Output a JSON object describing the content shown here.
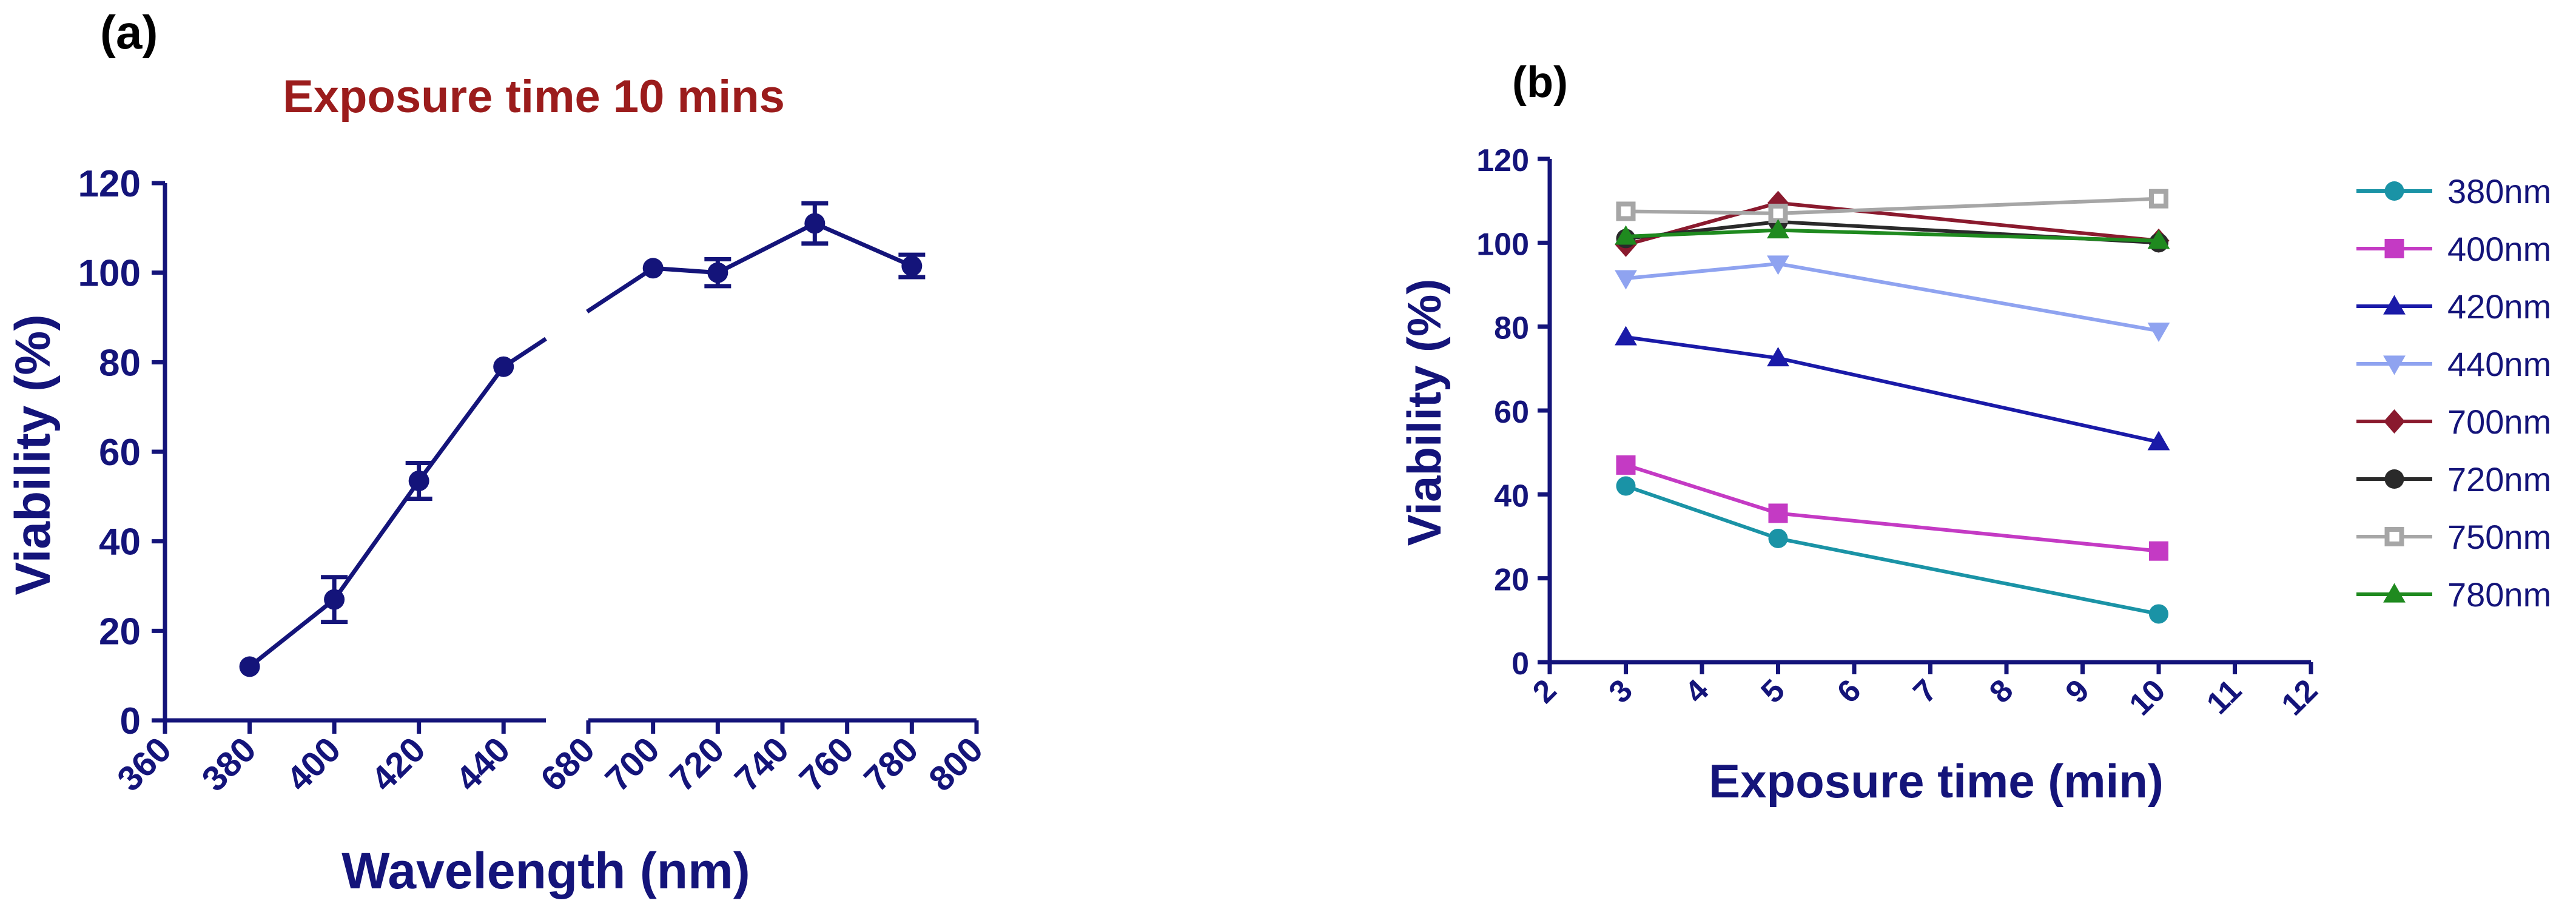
{
  "colors": {
    "axis": "#14147a",
    "title_red": "#9b1c1c",
    "label_black": "#000000"
  },
  "chart_data": [
    {
      "panel": "(a)",
      "type": "line",
      "title": "Exposure time 10 mins",
      "xlabel": "Wavelength (nm)",
      "ylabel": "Viability (%)",
      "ylim": [
        0,
        120
      ],
      "yticks": [
        "0",
        "20",
        "40",
        "60",
        "80",
        "100",
        "120"
      ],
      "segments": [
        {
          "xlim": [
            360,
            450
          ],
          "xticks": [
            "360",
            "380",
            "400",
            "420",
            "440"
          ]
        },
        {
          "xlim": [
            680,
            800
          ],
          "xticks": [
            "680",
            "700",
            "720",
            "740",
            "760",
            "780",
            "800"
          ]
        }
      ],
      "grid": false,
      "series": [
        {
          "name": "Viability",
          "color": "#14147a",
          "marker": "circle",
          "points": [
            {
              "x": 380,
              "y": 12,
              "err": 0
            },
            {
              "x": 400,
              "y": 27,
              "err": 5
            },
            {
              "x": 420,
              "y": 53.5,
              "err": 4
            },
            {
              "x": 440,
              "y": 79,
              "err": 0
            },
            {
              "x": 700,
              "y": 101,
              "err": 0
            },
            {
              "x": 720,
              "y": 100,
              "err": 3
            },
            {
              "x": 750,
              "y": 111,
              "err": 4.5
            },
            {
              "x": 780,
              "y": 101.5,
              "err": 2.5
            }
          ]
        }
      ]
    },
    {
      "panel": "(b)",
      "type": "line",
      "title": "",
      "xlabel": "Exposure time (min)",
      "ylabel": "Viability (%)",
      "xlim": [
        2,
        12
      ],
      "ylim": [
        0,
        120
      ],
      "xticks": [
        "2",
        "3",
        "4",
        "5",
        "6",
        "7",
        "8",
        "9",
        "10",
        "11",
        "12"
      ],
      "yticks": [
        "0",
        "20",
        "40",
        "60",
        "80",
        "100",
        "120"
      ],
      "x": [
        3,
        5,
        10
      ],
      "grid": false,
      "legend_position": "right",
      "series": [
        {
          "name": "380nm",
          "color": "#1a93a6",
          "marker": "circle",
          "values": [
            42,
            29.5,
            11.5
          ]
        },
        {
          "name": "400nm",
          "color": "#c43ac4",
          "marker": "square",
          "values": [
            47,
            35.5,
            26.5
          ]
        },
        {
          "name": "420nm",
          "color": "#1a1aa8",
          "marker": "triangle-up",
          "values": [
            77.5,
            72.5,
            52.5
          ]
        },
        {
          "name": "440nm",
          "color": "#8fa3f0",
          "marker": "triangle-down",
          "values": [
            91.5,
            95,
            79
          ]
        },
        {
          "name": "700nm",
          "color": "#8a1a2e",
          "marker": "diamond",
          "values": [
            99.5,
            109.5,
            100.5
          ]
        },
        {
          "name": "720nm",
          "color": "#2a2a2a",
          "marker": "circle",
          "values": [
            101,
            105,
            100
          ]
        },
        {
          "name": "750nm",
          "color": "#a6a6a6",
          "marker": "square-open",
          "values": [
            107.5,
            107,
            110.5
          ]
        },
        {
          "name": "780nm",
          "color": "#1f8a1f",
          "marker": "triangle-up",
          "values": [
            101.5,
            103,
            100.5
          ]
        }
      ]
    }
  ]
}
